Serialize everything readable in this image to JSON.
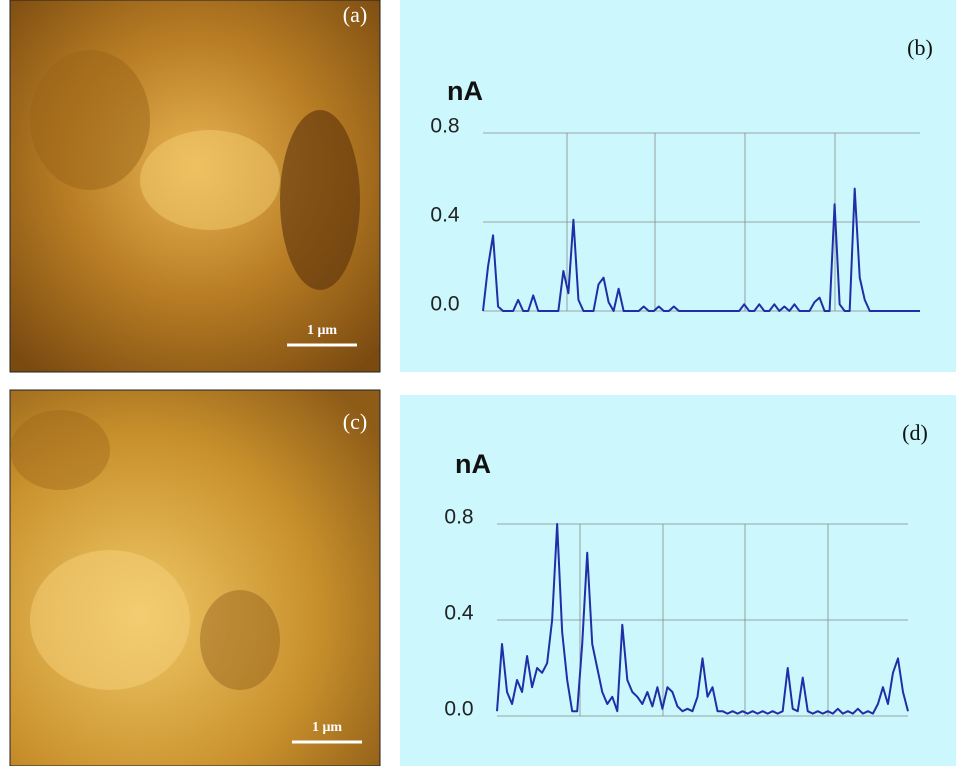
{
  "images": [
    {
      "label": "(a)",
      "scale_bar": "1 μm"
    },
    {
      "label": "(c)",
      "scale_bar": "1 μm"
    }
  ],
  "chart_data": [
    {
      "type": "line",
      "label": "(b)",
      "y_label": "nA",
      "ylim": [
        0,
        0.8
      ],
      "yticks": [
        {
          "value": 0,
          "label": "0.0"
        },
        0.4,
        0.8
      ],
      "grid": true,
      "color": "#1f2fa8",
      "values": [
        0,
        0.2,
        0.34,
        0.02,
        0,
        0,
        0,
        0.05,
        0,
        0,
        0.07,
        0,
        0,
        0,
        0,
        0,
        0.18,
        0.08,
        0.41,
        0.05,
        0,
        0,
        0,
        0.12,
        0.15,
        0.04,
        0,
        0.1,
        0,
        0,
        0,
        0,
        0.02,
        0,
        0,
        0.02,
        0,
        0,
        0.02,
        0,
        0,
        0,
        0,
        0,
        0,
        0,
        0,
        0,
        0,
        0,
        0,
        0,
        0.03,
        0,
        0,
        0.03,
        0,
        0,
        0.03,
        0,
        0.02,
        0,
        0.03,
        0,
        0,
        0,
        0.04,
        0.06,
        0,
        0,
        0.48,
        0.03,
        0,
        0,
        0.55,
        0.15,
        0.05,
        0,
        0,
        0,
        0,
        0,
        0,
        0,
        0,
        0,
        0,
        0
      ]
    },
    {
      "type": "line",
      "label": "(d)",
      "y_label": "nA",
      "ylim": [
        0,
        0.8
      ],
      "yticks": [
        {
          "value": 0,
          "label": "0.0"
        },
        0.4,
        0.8
      ],
      "grid": true,
      "color": "#1f2fa8",
      "values": [
        0.02,
        0.3,
        0.1,
        0.05,
        0.15,
        0.1,
        0.25,
        0.12,
        0.2,
        0.18,
        0.22,
        0.4,
        0.8,
        0.35,
        0.15,
        0.02,
        0.02,
        0.3,
        0.68,
        0.3,
        0.2,
        0.1,
        0.05,
        0.08,
        0.02,
        0.38,
        0.15,
        0.1,
        0.08,
        0.05,
        0.1,
        0.04,
        0.12,
        0.03,
        0.12,
        0.1,
        0.04,
        0.02,
        0.03,
        0.02,
        0.08,
        0.24,
        0.08,
        0.12,
        0.02,
        0.02,
        0.01,
        0.02,
        0.01,
        0.02,
        0.01,
        0.02,
        0.01,
        0.02,
        0.01,
        0.02,
        0.01,
        0.02,
        0.2,
        0.03,
        0.02,
        0.16,
        0.02,
        0.01,
        0.02,
        0.01,
        0.02,
        0.01,
        0.03,
        0.01,
        0.02,
        0.01,
        0.03,
        0.01,
        0.02,
        0.01,
        0.05,
        0.12,
        0.05,
        0.18,
        0.24,
        0.1,
        0.02
      ]
    }
  ]
}
